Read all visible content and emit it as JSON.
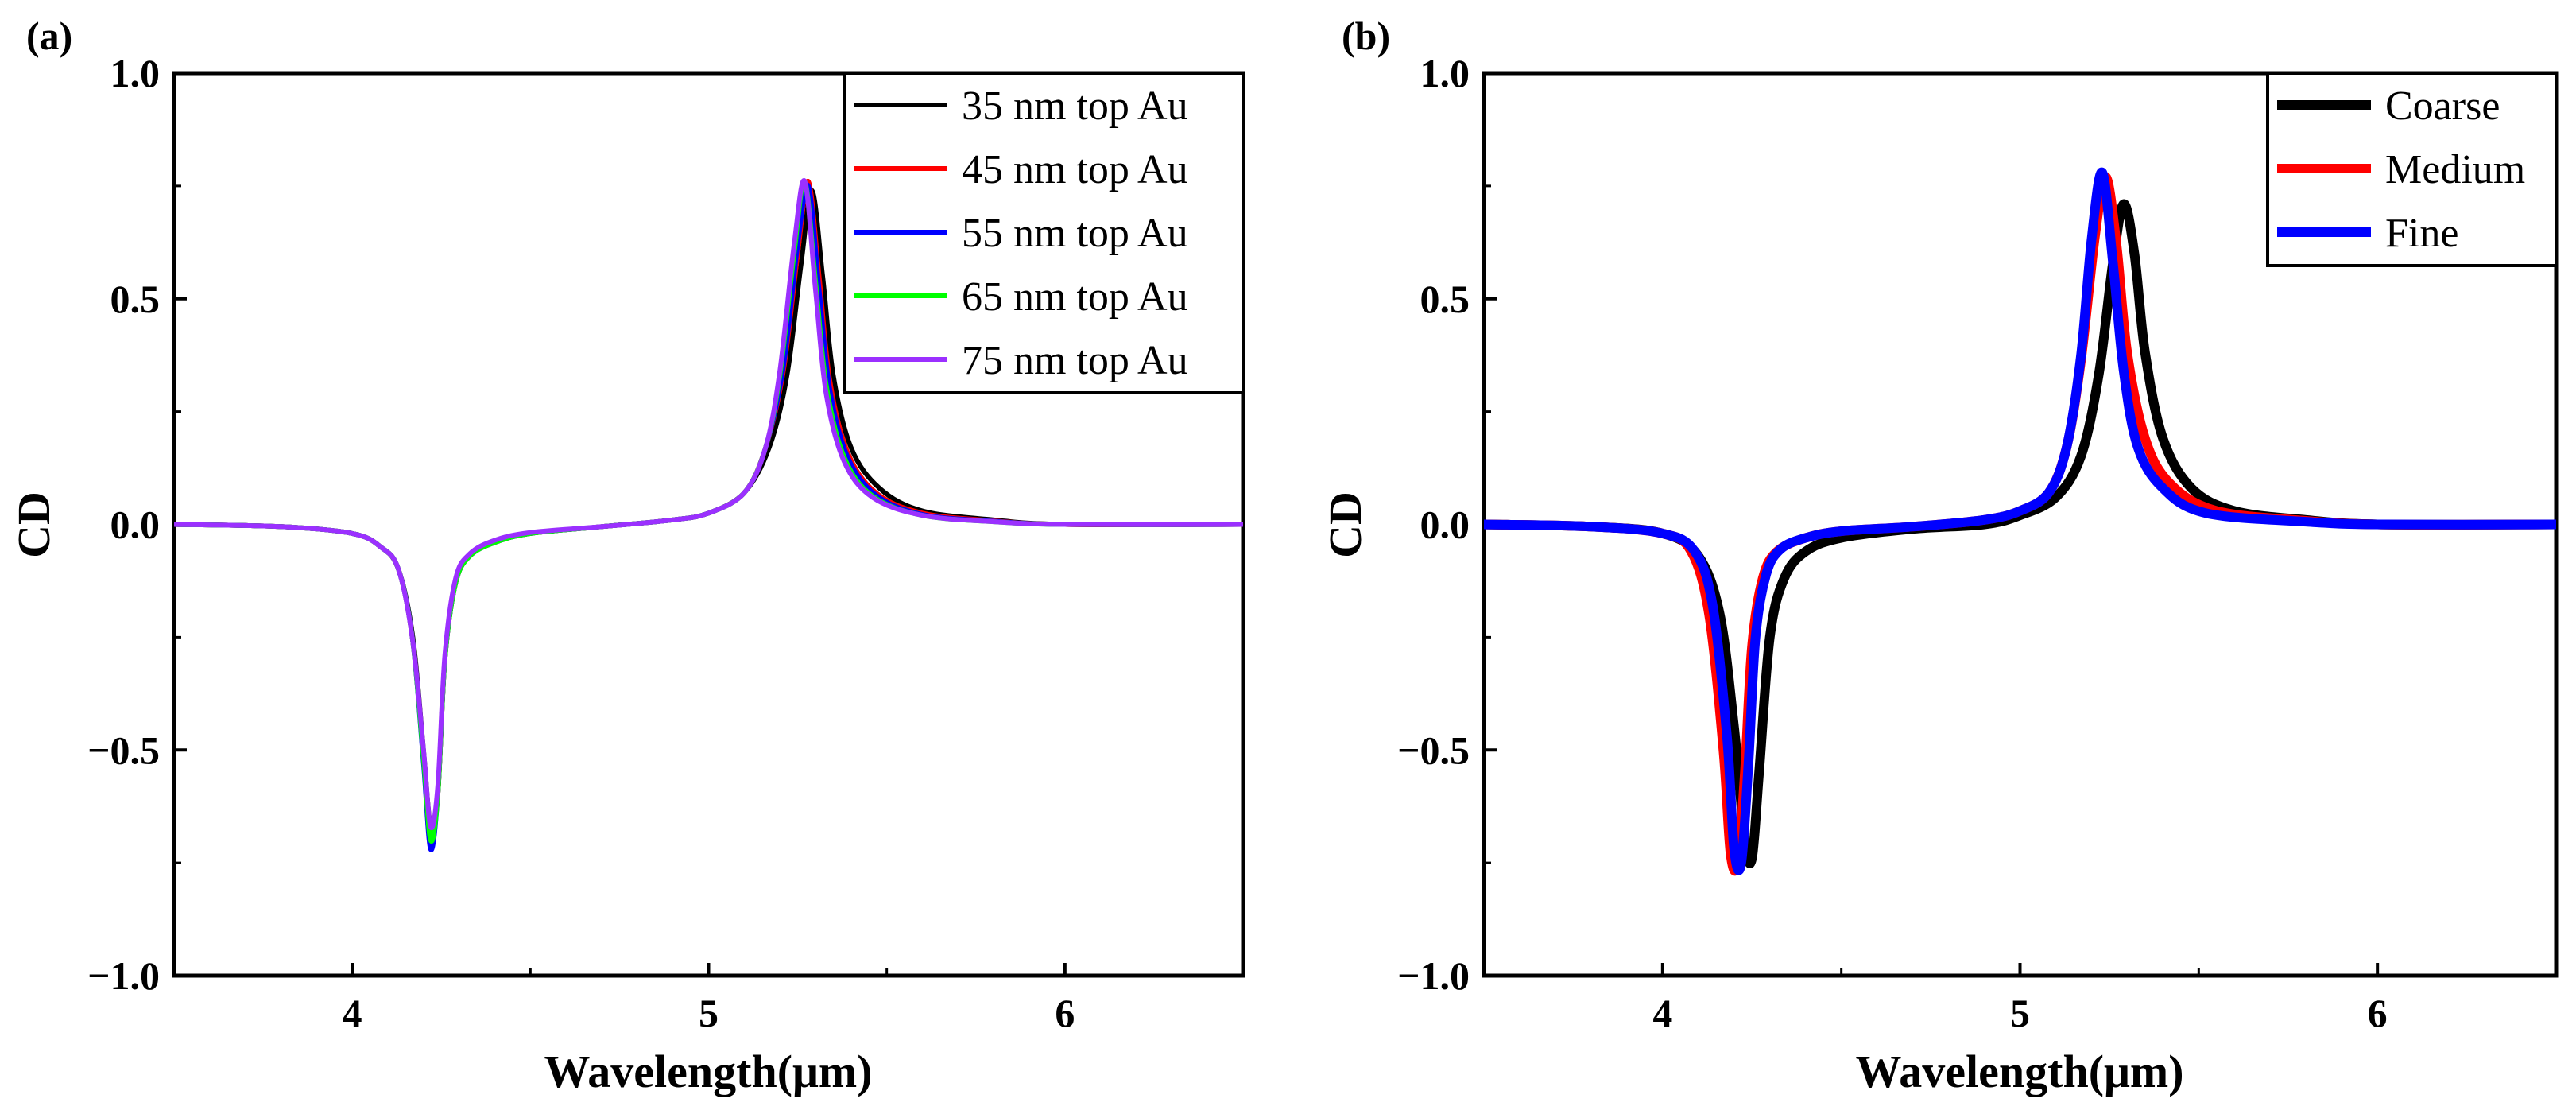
{
  "chart_data": [
    {
      "panel_label": "(a)",
      "type": "line",
      "xlabel": "Wavelength(μm)",
      "ylabel": "CD",
      "xlim": [
        3.5,
        6.5
      ],
      "ylim": [
        -1.0,
        1.0
      ],
      "x_ticks": [
        4,
        5,
        6
      ],
      "x_tick_labels": [
        "4",
        "5",
        "6"
      ],
      "y_ticks": [
        -1.0,
        -0.5,
        0.0,
        0.5,
        1.0
      ],
      "y_tick_labels": [
        "−1.0",
        "−0.5",
        "0.0",
        "0.5",
        "1.0"
      ],
      "grid": false,
      "legend_position": "top-right",
      "series": [
        {
          "name": "35 nm top Au",
          "color": "#000000",
          "line_width": "thin",
          "x": [
            3.5,
            3.8,
            4.0,
            4.08,
            4.13,
            4.17,
            4.2,
            4.22,
            4.24,
            4.26,
            4.29,
            4.33,
            4.4,
            4.5,
            4.7,
            4.9,
            5.0,
            5.1,
            5.17,
            5.22,
            5.26,
            5.29,
            5.32,
            5.35,
            5.4,
            5.48,
            5.6,
            5.8,
            6.0,
            6.5
          ],
          "y": [
            0.0,
            -0.005,
            -0.02,
            -0.05,
            -0.1,
            -0.25,
            -0.5,
            -0.67,
            -0.6,
            -0.3,
            -0.13,
            -0.07,
            -0.04,
            -0.02,
            -0.005,
            0.01,
            0.025,
            0.07,
            0.17,
            0.33,
            0.58,
            0.74,
            0.55,
            0.33,
            0.17,
            0.08,
            0.03,
            0.01,
            0.0,
            0.0
          ]
        },
        {
          "name": "45 nm top Au",
          "color": "#ff0000",
          "line_width": "thin",
          "x": [
            3.5,
            3.8,
            4.0,
            4.08,
            4.13,
            4.17,
            4.2,
            4.22,
            4.24,
            4.26,
            4.29,
            4.33,
            4.4,
            4.5,
            4.7,
            4.9,
            5.0,
            5.1,
            5.16,
            5.21,
            5.25,
            5.28,
            5.31,
            5.34,
            5.39,
            5.47,
            5.6,
            5.8,
            6.0,
            6.5
          ],
          "y": [
            0.0,
            -0.005,
            -0.02,
            -0.05,
            -0.1,
            -0.26,
            -0.52,
            -0.69,
            -0.6,
            -0.3,
            -0.13,
            -0.07,
            -0.04,
            -0.02,
            -0.005,
            0.01,
            0.025,
            0.07,
            0.17,
            0.34,
            0.6,
            0.76,
            0.55,
            0.32,
            0.16,
            0.07,
            0.025,
            0.008,
            0.0,
            0.0
          ]
        },
        {
          "name": "55 nm top Au",
          "color": "#0000ff",
          "line_width": "thin",
          "x": [
            3.5,
            3.8,
            4.0,
            4.08,
            4.13,
            4.17,
            4.2,
            4.22,
            4.24,
            4.26,
            4.29,
            4.33,
            4.4,
            4.5,
            4.7,
            4.9,
            5.0,
            5.1,
            5.16,
            5.21,
            5.25,
            5.28,
            5.31,
            5.34,
            5.39,
            5.47,
            5.6,
            5.8,
            6.0,
            6.5
          ],
          "y": [
            0.0,
            -0.005,
            -0.02,
            -0.05,
            -0.1,
            -0.26,
            -0.53,
            -0.72,
            -0.6,
            -0.3,
            -0.13,
            -0.07,
            -0.04,
            -0.02,
            -0.005,
            0.01,
            0.025,
            0.07,
            0.17,
            0.35,
            0.62,
            0.75,
            0.52,
            0.3,
            0.15,
            0.065,
            0.022,
            0.007,
            0.0,
            0.0
          ]
        },
        {
          "name": "65 nm top Au",
          "color": "#00ff00",
          "line_width": "thin",
          "x": [
            3.5,
            3.8,
            4.0,
            4.08,
            4.13,
            4.17,
            4.2,
            4.22,
            4.24,
            4.26,
            4.29,
            4.33,
            4.4,
            4.5,
            4.7,
            4.9,
            5.0,
            5.1,
            5.16,
            5.2,
            5.24,
            5.27,
            5.3,
            5.33,
            5.38,
            5.46,
            5.6,
            5.8,
            6.0,
            6.5
          ],
          "y": [
            0.0,
            -0.005,
            -0.02,
            -0.05,
            -0.1,
            -0.26,
            -0.52,
            -0.7,
            -0.6,
            -0.3,
            -0.13,
            -0.07,
            -0.04,
            -0.02,
            -0.005,
            0.01,
            0.025,
            0.07,
            0.17,
            0.33,
            0.6,
            0.76,
            0.54,
            0.31,
            0.15,
            0.063,
            0.02,
            0.006,
            0.0,
            0.0
          ]
        },
        {
          "name": "75 nm top Au",
          "color": "#9b30ff",
          "line_width": "thin",
          "x": [
            3.5,
            3.8,
            4.0,
            4.08,
            4.13,
            4.17,
            4.2,
            4.22,
            4.24,
            4.26,
            4.29,
            4.33,
            4.4,
            4.5,
            4.7,
            4.9,
            5.0,
            5.1,
            5.16,
            5.2,
            5.24,
            5.27,
            5.3,
            5.33,
            5.38,
            5.46,
            5.6,
            5.8,
            6.0,
            6.5
          ],
          "y": [
            0.0,
            -0.005,
            -0.02,
            -0.05,
            -0.1,
            -0.26,
            -0.5,
            -0.67,
            -0.58,
            -0.29,
            -0.12,
            -0.065,
            -0.035,
            -0.018,
            -0.005,
            0.01,
            0.025,
            0.07,
            0.17,
            0.34,
            0.62,
            0.76,
            0.52,
            0.29,
            0.14,
            0.06,
            0.02,
            0.006,
            0.0,
            0.0
          ]
        }
      ]
    },
    {
      "panel_label": "(b)",
      "type": "line",
      "xlabel": "Wavelength(μm)",
      "ylabel": "CD",
      "xlim": [
        3.5,
        6.5
      ],
      "ylim": [
        -1.0,
        1.0
      ],
      "x_ticks": [
        4,
        5,
        6
      ],
      "x_tick_labels": [
        "4",
        "5",
        "6"
      ],
      "y_ticks": [
        -1.0,
        -0.5,
        0.0,
        0.5,
        1.0
      ],
      "y_tick_labels": [
        "−1.0",
        "−0.5",
        "0.0",
        "0.5",
        "1.0"
      ],
      "grid": false,
      "legend_position": "top-right",
      "series": [
        {
          "name": "Coarse",
          "color": "#000000",
          "line_width": "thick",
          "x": [
            3.5,
            3.8,
            4.0,
            4.1,
            4.16,
            4.2,
            4.23,
            4.25,
            4.27,
            4.3,
            4.34,
            4.4,
            4.5,
            4.7,
            4.9,
            5.0,
            5.1,
            5.17,
            5.22,
            5.26,
            5.29,
            5.32,
            5.35,
            5.4,
            5.48,
            5.6,
            5.8,
            6.0,
            6.5
          ],
          "y": [
            0.0,
            -0.005,
            -0.02,
            -0.07,
            -0.2,
            -0.45,
            -0.7,
            -0.74,
            -0.55,
            -0.25,
            -0.12,
            -0.06,
            -0.03,
            -0.01,
            0.0,
            0.02,
            0.06,
            0.15,
            0.33,
            0.58,
            0.71,
            0.6,
            0.38,
            0.19,
            0.08,
            0.03,
            0.01,
            0.0,
            0.0
          ]
        },
        {
          "name": "Medium",
          "color": "#ff0000",
          "line_width": "thick",
          "x": [
            3.5,
            3.8,
            4.0,
            4.08,
            4.13,
            4.17,
            4.19,
            4.21,
            4.23,
            4.25,
            4.28,
            4.32,
            4.4,
            4.5,
            4.7,
            4.9,
            5.0,
            5.08,
            5.13,
            5.17,
            5.21,
            5.24,
            5.27,
            5.3,
            5.35,
            5.42,
            5.55,
            5.8,
            6.0,
            6.5
          ],
          "y": [
            0.0,
            -0.005,
            -0.02,
            -0.06,
            -0.2,
            -0.5,
            -0.73,
            -0.75,
            -0.55,
            -0.27,
            -0.12,
            -0.06,
            -0.03,
            -0.015,
            -0.005,
            0.01,
            0.03,
            0.07,
            0.17,
            0.36,
            0.64,
            0.77,
            0.62,
            0.38,
            0.19,
            0.09,
            0.03,
            0.008,
            0.0,
            0.0
          ]
        },
        {
          "name": "Fine",
          "color": "#0000ff",
          "line_width": "thick",
          "x": [
            3.5,
            3.8,
            4.0,
            4.09,
            4.14,
            4.18,
            4.2,
            4.22,
            4.24,
            4.26,
            4.29,
            4.33,
            4.4,
            4.5,
            4.7,
            4.9,
            5.0,
            5.08,
            5.13,
            5.17,
            5.2,
            5.23,
            5.26,
            5.29,
            5.33,
            5.4,
            5.52,
            5.8,
            6.0,
            6.5
          ],
          "y": [
            0.0,
            -0.005,
            -0.02,
            -0.06,
            -0.18,
            -0.47,
            -0.72,
            -0.75,
            -0.53,
            -0.25,
            -0.11,
            -0.055,
            -0.03,
            -0.015,
            -0.005,
            0.01,
            0.03,
            0.07,
            0.17,
            0.37,
            0.63,
            0.78,
            0.58,
            0.34,
            0.17,
            0.08,
            0.025,
            0.006,
            0.0,
            0.0
          ]
        }
      ]
    }
  ]
}
